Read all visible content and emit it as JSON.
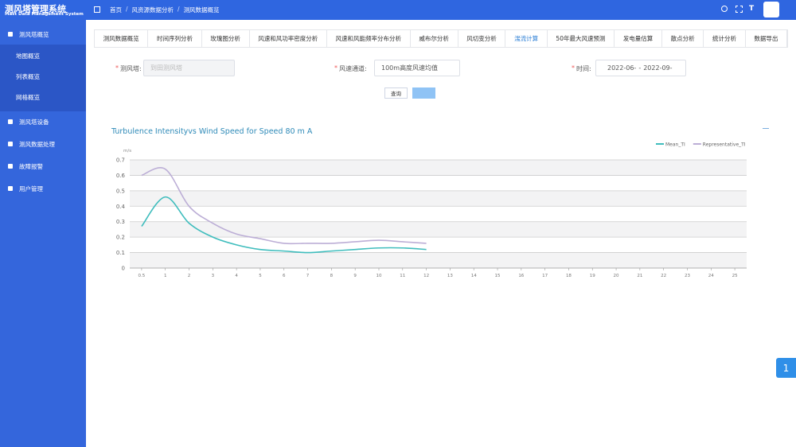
{
  "header": {
    "title": "测风塔管理系统",
    "subtitle": "Mast Data Management System",
    "breadcrumb": [
      "首页",
      "风资源数据分析",
      "测风数据概览"
    ],
    "separator": "/"
  },
  "sidebar": {
    "menu": [
      {
        "label": "测风塔概览",
        "children": [
          "地图概览",
          "列表概览",
          "网格概览"
        ]
      },
      {
        "label": "测风塔设备"
      },
      {
        "label": "测风数据处理"
      },
      {
        "label": "故障报警"
      },
      {
        "label": "用户管理"
      }
    ]
  },
  "tabs": {
    "items": [
      "测风数据概览",
      "时间序列分析",
      "玫瑰图分析",
      "风速和风功率密度分析",
      "风速和风能频率分布分析",
      "威布尔分析",
      "风切变分析",
      "湍流计算",
      "50年最大风速预测",
      "发电量估算",
      "散点分析",
      "统计分析",
      "数据导出"
    ],
    "active": 7
  },
  "form": {
    "required_mark": "*",
    "tower_label": "测风塔:",
    "tower_value": "到田测风塔",
    "channel_label": "风速通道:",
    "channel_value": "100m高度风速均值",
    "time_label": "时间:",
    "time_start": "2022-06-",
    "range_separator": "-",
    "time_end": "2022-09-",
    "query": "查询"
  },
  "chart_data": {
    "type": "line",
    "title": "Turbulence Intensityvs Wind Speed for Speed 80 m A",
    "y_unit": "m/s",
    "categories": [
      "0.5",
      "1",
      "2",
      "3",
      "4",
      "5",
      "6",
      "7",
      "8",
      "9",
      "10",
      "11",
      "12",
      "13",
      "14",
      "15",
      "16",
      "17",
      "18",
      "19",
      "20",
      "21",
      "22",
      "23",
      "24",
      "25"
    ],
    "series": [
      {
        "name": "Mean_TI",
        "color": "#3fbdbd",
        "values": [
          0.27,
          0.46,
          0.29,
          0.2,
          0.15,
          0.12,
          0.11,
          0.1,
          0.11,
          0.12,
          0.13,
          0.13,
          0.12,
          null,
          null,
          null,
          null,
          null,
          null,
          null,
          null,
          null,
          null,
          null,
          null,
          null
        ]
      },
      {
        "name": "Representative_TI",
        "color": "#bcaed6",
        "values": [
          0.6,
          0.64,
          0.4,
          0.29,
          0.22,
          0.19,
          0.16,
          0.16,
          0.16,
          0.17,
          0.18,
          0.17,
          0.16,
          null,
          null,
          null,
          null,
          null,
          null,
          null,
          null,
          null,
          null,
          null,
          null,
          null
        ]
      }
    ],
    "ylim": [
      0,
      0.7
    ],
    "yticks": [
      0,
      0.1,
      0.2,
      0.3,
      0.4,
      0.5,
      0.6,
      0.7
    ],
    "grid": true,
    "legend": "top-right"
  },
  "float_button": "1"
}
